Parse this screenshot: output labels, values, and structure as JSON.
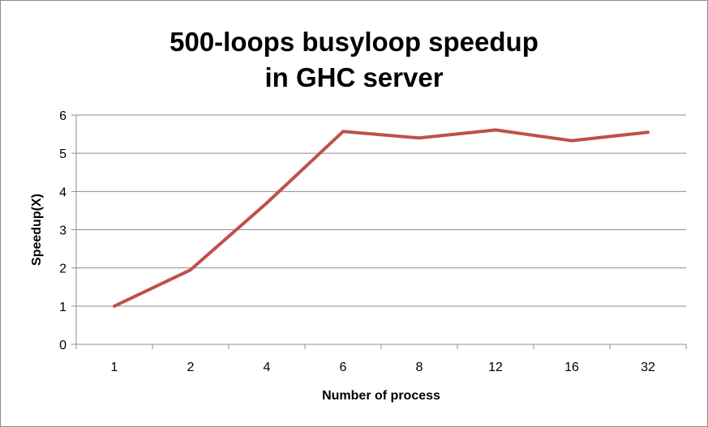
{
  "chart_data": {
    "type": "line",
    "title_lines": [
      "500-loops busyloop speedup",
      "in GHC server"
    ],
    "xlabel": "Number of process",
    "ylabel": "Speedup(X)",
    "categories": [
      "1",
      "2",
      "4",
      "6",
      "8",
      "12",
      "16",
      "32"
    ],
    "series": [
      {
        "values": [
          1.0,
          1.95,
          3.7,
          5.57,
          5.4,
          5.61,
          5.33,
          5.55
        ],
        "color": "#c0504d"
      }
    ],
    "ylim": [
      0,
      6
    ],
    "yticks": [
      "0",
      "1",
      "2",
      "3",
      "4",
      "5",
      "6"
    ],
    "grid": true,
    "legend": "none"
  }
}
